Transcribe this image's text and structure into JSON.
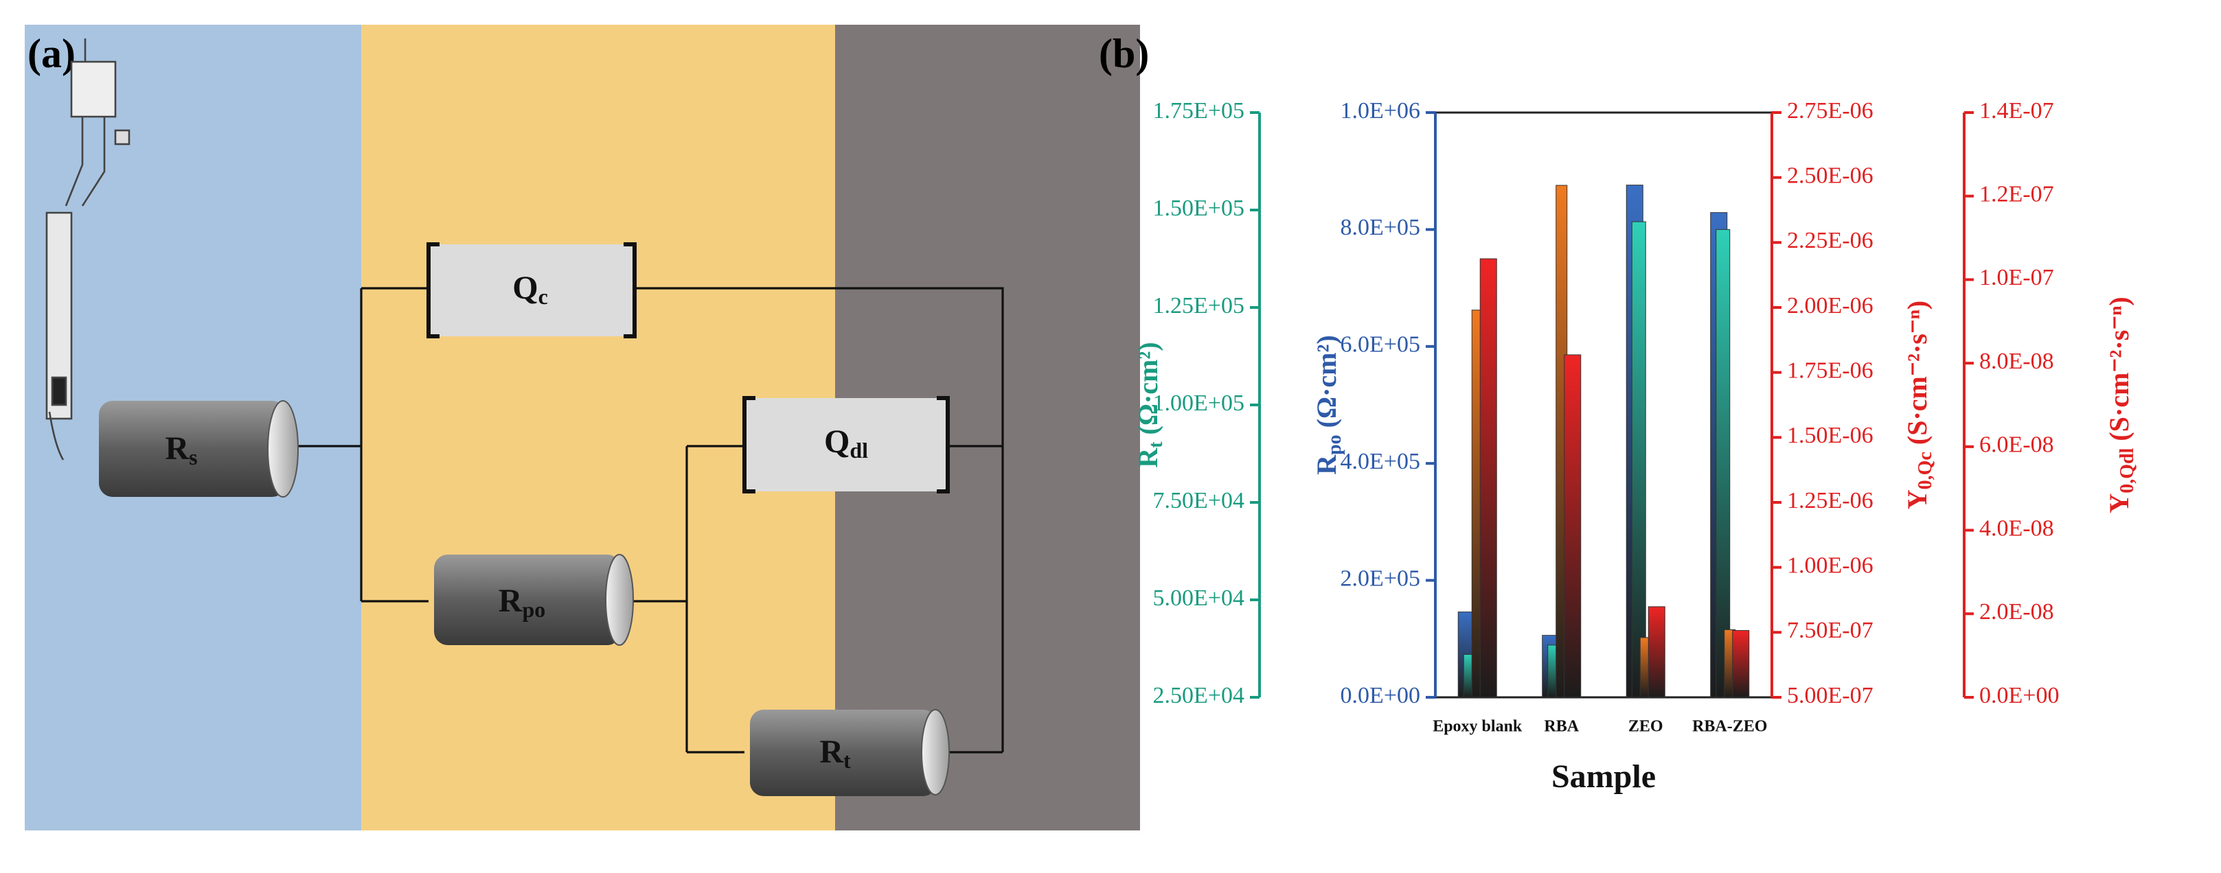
{
  "diagram": {
    "panel_label": "(a)",
    "nodes": [
      {
        "label": "R",
        "sub": "s"
      },
      {
        "label": "Q",
        "sub": "c"
      },
      {
        "label": "R",
        "sub": "po"
      },
      {
        "label": "Q",
        "sub": "dl"
      },
      {
        "label": "R",
        "sub": "t"
      }
    ]
  },
  "chart_data": {
    "type": "bar",
    "panel_label": "(b)",
    "categories": [
      "Epoxy blank",
      "RBA",
      "ZEO",
      "RBA-ZEO"
    ],
    "xlabel": "Sample",
    "axes": [
      {
        "label": "R",
        "sub": "t",
        "unit": "(Ω·cm²)",
        "color": "#1a9b80",
        "ylim": [
          25000,
          175000
        ],
        "yticks": [
          {
            "value": 25000,
            "label": "2.50E+04"
          },
          {
            "value": 50000,
            "label": "5.00E+04"
          },
          {
            "value": 75000,
            "label": "7.50E+04"
          },
          {
            "value": 100000,
            "label": "1.00E+05"
          },
          {
            "value": 125000,
            "label": "1.25E+05"
          },
          {
            "value": 150000,
            "label": "1.50E+05"
          },
          {
            "value": 175000,
            "label": "1.75E+05"
          }
        ]
      },
      {
        "label": "R",
        "sub": "po",
        "unit": "(Ω·cm²)",
        "color": "#2e5aa8",
        "ylim": [
          0,
          1000000
        ],
        "yticks": [
          {
            "value": 0,
            "label": "0.0E+00"
          },
          {
            "value": 200000,
            "label": "2.0E+05"
          },
          {
            "value": 400000,
            "label": "4.0E+05"
          },
          {
            "value": 600000,
            "label": "6.0E+05"
          },
          {
            "value": 800000,
            "label": "8.0E+05"
          },
          {
            "value": 1000000,
            "label": "1.0E+06"
          }
        ]
      },
      {
        "label": "Y",
        "sub": "0,Qc",
        "unit": "(S·cm⁻²·s⁻ⁿ)",
        "color": "#e02020",
        "ylim": [
          5e-07,
          2.75e-06
        ],
        "yticks": [
          {
            "value": 5e-07,
            "label": "5.00E-07"
          },
          {
            "value": 7.5e-07,
            "label": "7.50E-07"
          },
          {
            "value": 1e-06,
            "label": "1.00E-06"
          },
          {
            "value": 1.25e-06,
            "label": "1.25E-06"
          },
          {
            "value": 1.5e-06,
            "label": "1.50E-06"
          },
          {
            "value": 1.75e-06,
            "label": "1.75E-06"
          },
          {
            "value": 2e-06,
            "label": "2.00E-06"
          },
          {
            "value": 2.25e-06,
            "label": "2.25E-06"
          },
          {
            "value": 2.5e-06,
            "label": "2.50E-06"
          },
          {
            "value": 2.75e-06,
            "label": "2.75E-06"
          }
        ]
      },
      {
        "label": "Y",
        "sub": "0,Qdl",
        "unit": "(S·cm⁻²·s⁻ⁿ)",
        "color": "#e02020",
        "ylim": [
          0,
          1.4e-07
        ],
        "yticks": [
          {
            "value": 0,
            "label": "0.0E+00"
          },
          {
            "value": 2e-08,
            "label": "2.0E-08"
          },
          {
            "value": 4e-08,
            "label": "4.0E-08"
          },
          {
            "value": 6e-08,
            "label": "6.0E-08"
          },
          {
            "value": 8e-08,
            "label": "8.0E-08"
          },
          {
            "value": 1e-07,
            "label": "1.0E-07"
          },
          {
            "value": 1.2e-07,
            "label": "1.2E-07"
          },
          {
            "value": 1.4e-07,
            "label": "1.4E-07"
          }
        ]
      }
    ],
    "series": [
      {
        "axis": 1,
        "color": "#3a6fc4",
        "values": [
          146000,
          106000,
          876000,
          829000
        ]
      },
      {
        "axis": 0,
        "color": "#2fd0b8",
        "values": [
          36000,
          38400,
          147000,
          145000
        ]
      },
      {
        "axis": 2,
        "color": "#f07a20",
        "values": [
          1.99e-06,
          2.47e-06,
          7.3e-07,
          7.6e-07
        ]
      },
      {
        "axis": 3,
        "color": "#f02424",
        "values": [
          1.05e-07,
          8.2e-08,
          2.17e-08,
          1.6e-08
        ]
      }
    ]
  }
}
